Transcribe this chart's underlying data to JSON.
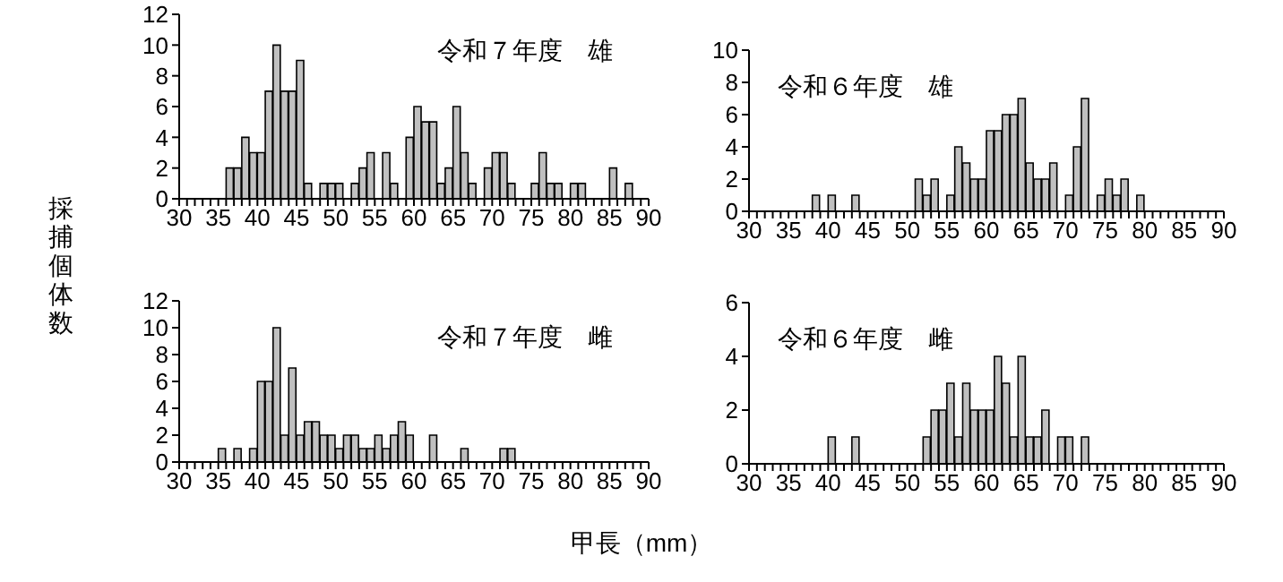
{
  "chart_data": [
    {
      "type": "histogram",
      "title": "令和７年度　雄",
      "ylabel": "採捕個体数",
      "color": "#c0c0c0",
      "bins": [
        30,
        31,
        32,
        33,
        34,
        35,
        36,
        37,
        38,
        39,
        40,
        41,
        42,
        43,
        44,
        45,
        46,
        47,
        48,
        49,
        50,
        51,
        52,
        53,
        54,
        55,
        56,
        57,
        58,
        59,
        60,
        61,
        62,
        63,
        64,
        65,
        66,
        67,
        68,
        69,
        70,
        71,
        72,
        73,
        74,
        75,
        76,
        77,
        78,
        79,
        80,
        81,
        82,
        83,
        84,
        85,
        86,
        87,
        88,
        89,
        90
      ],
      "values": [
        0,
        0,
        0,
        0,
        0,
        0,
        2,
        2,
        4,
        3,
        3,
        7,
        10,
        7,
        7,
        9,
        1,
        0,
        1,
        1,
        1,
        0,
        1,
        2,
        3,
        0,
        3,
        1,
        0,
        4,
        6,
        5,
        5,
        1,
        2,
        6,
        3,
        1,
        0,
        2,
        3,
        3,
        1,
        0,
        0,
        1,
        3,
        1,
        1,
        0,
        1,
        1,
        0,
        0,
        0,
        2,
        0,
        1,
        0,
        0
      ],
      "xlim": [
        30,
        90
      ],
      "xticks": [
        30,
        {
          "value": 31,
          "label": null
        },
        {
          "value": 32,
          "label": null
        },
        {
          "value": 33,
          "label": null
        },
        {
          "value": 34,
          "label": null
        },
        35,
        {
          "value": 36,
          "label": null
        },
        {
          "value": 37,
          "label": null
        },
        {
          "value": 38,
          "label": null
        },
        {
          "value": 39,
          "label": null
        },
        40,
        {
          "value": 41,
          "label": null
        },
        {
          "value": 42,
          "label": null
        },
        {
          "value": 43,
          "label": null
        },
        {
          "value": 44,
          "label": null
        },
        45,
        {
          "value": 46,
          "label": null
        },
        {
          "value": 47,
          "label": null
        },
        {
          "value": 48,
          "label": null
        },
        {
          "value": 49,
          "label": null
        },
        50,
        {
          "value": 51,
          "label": null
        },
        {
          "value": 52,
          "label": null
        },
        {
          "value": 53,
          "label": null
        },
        {
          "value": 54,
          "label": null
        },
        55,
        {
          "value": 56,
          "label": null
        },
        {
          "value": 57,
          "label": null
        },
        {
          "value": 58,
          "label": null
        },
        {
          "value": 59,
          "label": null
        },
        60,
        {
          "value": 61,
          "label": null
        },
        {
          "value": 62,
          "label": null
        },
        {
          "value": 63,
          "label": null
        },
        {
          "value": 64,
          "label": null
        },
        65,
        {
          "value": 66,
          "label": null
        },
        {
          "value": 67,
          "label": null
        },
        {
          "value": 68,
          "label": null
        },
        {
          "value": 69,
          "label": null
        },
        70,
        {
          "value": 71,
          "label": null
        },
        {
          "value": 72,
          "label": null
        },
        {
          "value": 73,
          "label": null
        },
        {
          "value": 74,
          "label": null
        },
        75,
        {
          "value": 76,
          "label": null
        },
        {
          "value": 77,
          "label": null
        },
        {
          "value": 78,
          "label": null
        },
        {
          "value": 79,
          "label": null
        },
        80,
        {
          "value": 81,
          "label": null
        },
        {
          "value": 82,
          "label": null
        },
        {
          "value": 83,
          "label": null
        },
        {
          "value": 84,
          "label": null
        },
        85,
        {
          "value": 86,
          "label": null
        },
        {
          "value": 87,
          "label": null
        },
        {
          "value": 88,
          "label": null
        },
        {
          "value": 89,
          "label": null
        },
        90
      ],
      "ylim": [
        0,
        12
      ],
      "yticks": [
        0,
        2,
        4,
        6,
        8,
        10,
        12
      ]
    },
    {
      "type": "histogram",
      "title": "令和６年度　雄",
      "color": "#c0c0c0",
      "bins": [
        30,
        31,
        32,
        33,
        34,
        35,
        36,
        37,
        38,
        39,
        40,
        41,
        42,
        43,
        44,
        45,
        46,
        47,
        48,
        49,
        50,
        51,
        52,
        53,
        54,
        55,
        56,
        57,
        58,
        59,
        60,
        61,
        62,
        63,
        64,
        65,
        66,
        67,
        68,
        69,
        70,
        71,
        72,
        73,
        74,
        75,
        76,
        77,
        78,
        79,
        80,
        81,
        82,
        83,
        84,
        85,
        86,
        87,
        88,
        89,
        90
      ],
      "values": [
        0,
        0,
        0,
        0,
        0,
        0,
        0,
        0,
        1,
        0,
        1,
        0,
        0,
        1,
        0,
        0,
        0,
        0,
        0,
        0,
        0,
        2,
        1,
        2,
        0,
        1,
        4,
        3,
        2,
        2,
        5,
        5,
        6,
        6,
        7,
        3,
        2,
        2,
        3,
        0,
        1,
        4,
        7,
        0,
        1,
        2,
        1,
        2,
        0,
        1,
        0,
        0,
        0,
        0,
        0,
        0,
        0,
        0,
        0,
        0
      ],
      "xlim": [
        30,
        90
      ],
      "xticks": [
        30,
        {
          "value": 31,
          "label": null
        },
        {
          "value": 32,
          "label": null
        },
        {
          "value": 33,
          "label": null
        },
        {
          "value": 34,
          "label": null
        },
        35,
        {
          "value": 36,
          "label": null
        },
        {
          "value": 37,
          "label": null
        },
        {
          "value": 38,
          "label": null
        },
        {
          "value": 39,
          "label": null
        },
        40,
        {
          "value": 41,
          "label": null
        },
        {
          "value": 42,
          "label": null
        },
        {
          "value": 43,
          "label": null
        },
        {
          "value": 44,
          "label": null
        },
        45,
        {
          "value": 46,
          "label": null
        },
        {
          "value": 47,
          "label": null
        },
        {
          "value": 48,
          "label": null
        },
        {
          "value": 49,
          "label": null
        },
        50,
        {
          "value": 51,
          "label": null
        },
        {
          "value": 52,
          "label": null
        },
        {
          "value": 53,
          "label": null
        },
        {
          "value": 54,
          "label": null
        },
        55,
        {
          "value": 56,
          "label": null
        },
        {
          "value": 57,
          "label": null
        },
        {
          "value": 58,
          "label": null
        },
        {
          "value": 59,
          "label": null
        },
        60,
        {
          "value": 61,
          "label": null
        },
        {
          "value": 62,
          "label": null
        },
        {
          "value": 63,
          "label": null
        },
        {
          "value": 64,
          "label": null
        },
        65,
        {
          "value": 66,
          "label": null
        },
        {
          "value": 67,
          "label": null
        },
        {
          "value": 68,
          "label": null
        },
        {
          "value": 69,
          "label": null
        },
        70,
        {
          "value": 71,
          "label": null
        },
        {
          "value": 72,
          "label": null
        },
        {
          "value": 73,
          "label": null
        },
        {
          "value": 74,
          "label": null
        },
        75,
        {
          "value": 76,
          "label": null
        },
        {
          "value": 77,
          "label": null
        },
        {
          "value": 78,
          "label": null
        },
        {
          "value": 79,
          "label": null
        },
        80,
        {
          "value": 81,
          "label": null
        },
        {
          "value": 82,
          "label": null
        },
        {
          "value": 83,
          "label": null
        },
        {
          "value": 84,
          "label": null
        },
        85,
        {
          "value": 86,
          "label": null
        },
        {
          "value": 87,
          "label": null
        },
        {
          "value": 88,
          "label": null
        },
        {
          "value": 89,
          "label": null
        },
        90
      ],
      "ylim": [
        0,
        10
      ],
      "yticks": [
        0,
        2,
        4,
        6,
        8,
        10
      ]
    },
    {
      "type": "histogram",
      "title": "令和７年度　雌",
      "xlabel": "甲長（mm）",
      "color": "#c0c0c0",
      "bins": [
        30,
        31,
        32,
        33,
        34,
        35,
        36,
        37,
        38,
        39,
        40,
        41,
        42,
        43,
        44,
        45,
        46,
        47,
        48,
        49,
        50,
        51,
        52,
        53,
        54,
        55,
        56,
        57,
        58,
        59,
        60,
        61,
        62,
        63,
        64,
        65,
        66,
        67,
        68,
        69,
        70,
        71,
        72,
        73,
        74,
        75,
        76,
        77,
        78,
        79,
        80,
        81,
        82,
        83,
        84,
        85,
        86,
        87,
        88,
        89,
        90
      ],
      "values": [
        0,
        0,
        0,
        0,
        0,
        1,
        0,
        1,
        0,
        1,
        6,
        6,
        10,
        2,
        7,
        2,
        3,
        3,
        2,
        2,
        1,
        2,
        2,
        1,
        1,
        2,
        1,
        2,
        3,
        2,
        0,
        0,
        2,
        0,
        0,
        0,
        1,
        0,
        0,
        0,
        0,
        1,
        1,
        0,
        0,
        0,
        0,
        0,
        0,
        0,
        0,
        0,
        0,
        0,
        0,
        0,
        0,
        0,
        0,
        0
      ],
      "xlim": [
        30,
        90
      ],
      "xticks": [
        30,
        {
          "value": 31,
          "label": null
        },
        {
          "value": 32,
          "label": null
        },
        {
          "value": 33,
          "label": null
        },
        {
          "value": 34,
          "label": null
        },
        35,
        {
          "value": 36,
          "label": null
        },
        {
          "value": 37,
          "label": null
        },
        {
          "value": 38,
          "label": null
        },
        {
          "value": 39,
          "label": null
        },
        40,
        {
          "value": 41,
          "label": null
        },
        {
          "value": 42,
          "label": null
        },
        {
          "value": 43,
          "label": null
        },
        {
          "value": 44,
          "label": null
        },
        45,
        {
          "value": 46,
          "label": null
        },
        {
          "value": 47,
          "label": null
        },
        {
          "value": 48,
          "label": null
        },
        {
          "value": 49,
          "label": null
        },
        50,
        {
          "value": 51,
          "label": null
        },
        {
          "value": 52,
          "label": null
        },
        {
          "value": 53,
          "label": null
        },
        {
          "value": 54,
          "label": null
        },
        55,
        {
          "value": 56,
          "label": null
        },
        {
          "value": 57,
          "label": null
        },
        {
          "value": 58,
          "label": null
        },
        {
          "value": 59,
          "label": null
        },
        60,
        {
          "value": 61,
          "label": null
        },
        {
          "value": 62,
          "label": null
        },
        {
          "value": 63,
          "label": null
        },
        {
          "value": 64,
          "label": null
        },
        65,
        {
          "value": 66,
          "label": null
        },
        {
          "value": 67,
          "label": null
        },
        {
          "value": 68,
          "label": null
        },
        {
          "value": 69,
          "label": null
        },
        70,
        {
          "value": 71,
          "label": null
        },
        {
          "value": 72,
          "label": null
        },
        {
          "value": 73,
          "label": null
        },
        {
          "value": 74,
          "label": null
        },
        75,
        {
          "value": 76,
          "label": null
        },
        {
          "value": 77,
          "label": null
        },
        {
          "value": 78,
          "label": null
        },
        {
          "value": 79,
          "label": null
        },
        80,
        {
          "value": 81,
          "label": null
        },
        {
          "value": 82,
          "label": null
        },
        {
          "value": 83,
          "label": null
        },
        {
          "value": 84,
          "label": null
        },
        85,
        {
          "value": 86,
          "label": null
        },
        {
          "value": 87,
          "label": null
        },
        {
          "value": 88,
          "label": null
        },
        {
          "value": 89,
          "label": null
        },
        90
      ],
      "ylim": [
        0,
        12
      ],
      "yticks": [
        0,
        2,
        4,
        6,
        8,
        10,
        12
      ]
    },
    {
      "type": "histogram",
      "title": "令和６年度　雌",
      "color": "#c0c0c0",
      "bins": [
        30,
        31,
        32,
        33,
        34,
        35,
        36,
        37,
        38,
        39,
        40,
        41,
        42,
        43,
        44,
        45,
        46,
        47,
        48,
        49,
        50,
        51,
        52,
        53,
        54,
        55,
        56,
        57,
        58,
        59,
        60,
        61,
        62,
        63,
        64,
        65,
        66,
        67,
        68,
        69,
        70,
        71,
        72,
        73,
        74,
        75,
        76,
        77,
        78,
        79,
        80,
        81,
        82,
        83,
        84,
        85,
        86,
        87,
        88,
        89,
        90
      ],
      "values": [
        0,
        0,
        0,
        0,
        0,
        0,
        0,
        0,
        0,
        0,
        1,
        0,
        0,
        1,
        0,
        0,
        0,
        0,
        0,
        0,
        0,
        0,
        1,
        2,
        2,
        3,
        1,
        3,
        2,
        2,
        2,
        4,
        3,
        1,
        4,
        1,
        1,
        2,
        0,
        1,
        1,
        0,
        1,
        0,
        0,
        0,
        0,
        0,
        0,
        0,
        0,
        0,
        0,
        0,
        0,
        0,
        0,
        0,
        0,
        0
      ],
      "xlim": [
        30,
        90
      ],
      "xticks": [
        30,
        {
          "value": 31,
          "label": null
        },
        {
          "value": 32,
          "label": null
        },
        {
          "value": 33,
          "label": null
        },
        {
          "value": 34,
          "label": null
        },
        35,
        {
          "value": 36,
          "label": null
        },
        {
          "value": 37,
          "label": null
        },
        {
          "value": 38,
          "label": null
        },
        {
          "value": 39,
          "label": null
        },
        40,
        {
          "value": 41,
          "label": null
        },
        {
          "value": 42,
          "label": null
        },
        {
          "value": 43,
          "label": null
        },
        {
          "value": 44,
          "label": null
        },
        45,
        {
          "value": 46,
          "label": null
        },
        {
          "value": 47,
          "label": null
        },
        {
          "value": 48,
          "label": null
        },
        {
          "value": 49,
          "label": null
        },
        50,
        {
          "value": 51,
          "label": null
        },
        {
          "value": 52,
          "label": null
        },
        {
          "value": 53,
          "label": null
        },
        {
          "value": 54,
          "label": null
        },
        55,
        {
          "value": 56,
          "label": null
        },
        {
          "value": 57,
          "label": null
        },
        {
          "value": 58,
          "label": null
        },
        {
          "value": 59,
          "label": null
        },
        60,
        {
          "value": 61,
          "label": null
        },
        {
          "value": 62,
          "label": null
        },
        {
          "value": 63,
          "label": null
        },
        {
          "value": 64,
          "label": null
        },
        65,
        {
          "value": 66,
          "label": null
        },
        {
          "value": 67,
          "label": null
        },
        {
          "value": 68,
          "label": null
        },
        {
          "value": 69,
          "label": null
        },
        70,
        {
          "value": 71,
          "label": null
        },
        {
          "value": 72,
          "label": null
        },
        {
          "value": 73,
          "label": null
        },
        {
          "value": 74,
          "label": null
        },
        75,
        {
          "value": 76,
          "label": null
        },
        {
          "value": 77,
          "label": null
        },
        {
          "value": 78,
          "label": null
        },
        {
          "value": 79,
          "label": null
        },
        80,
        {
          "value": 81,
          "label": null
        },
        {
          "value": 82,
          "label": null
        },
        {
          "value": 83,
          "label": null
        },
        {
          "value": 84,
          "label": null
        },
        85,
        {
          "value": 86,
          "label": null
        },
        {
          "value": 87,
          "label": null
        },
        {
          "value": 88,
          "label": null
        },
        {
          "value": 89,
          "label": null
        },
        90
      ],
      "ylim": [
        0,
        6
      ],
      "yticks": [
        0,
        2,
        4,
        6
      ]
    }
  ]
}
